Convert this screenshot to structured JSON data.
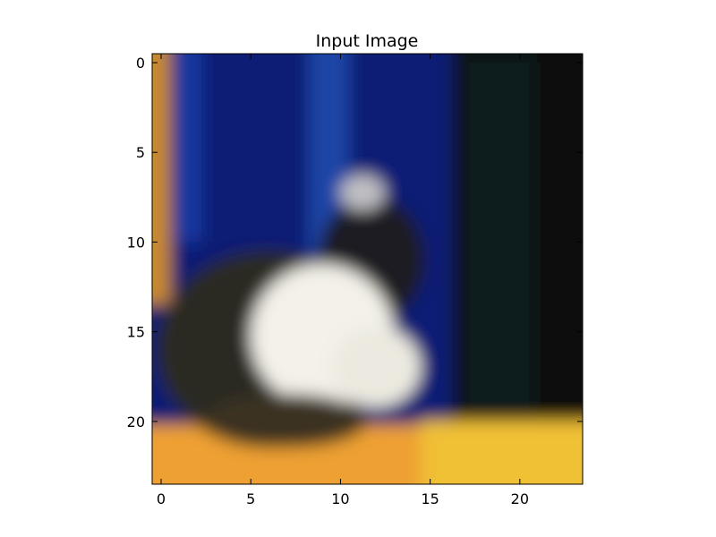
{
  "chart_data": {
    "type": "heatmap",
    "title": "Input Image",
    "xlabel": "",
    "ylabel": "",
    "xlim": [
      -0.5,
      23.5
    ],
    "ylim": [
      23.5,
      -0.5
    ],
    "x_ticks": [
      0,
      5,
      10,
      15,
      20
    ],
    "y_ticks": [
      0,
      5,
      10,
      15,
      20
    ],
    "grid": false,
    "grid_size": [
      24,
      24
    ],
    "description_regions": {
      "left_strip_color": "#c98a2a",
      "background_blue": "#0b1f78",
      "light_blue_stripe": "#1d47a8",
      "dark_right_region": "#0c1414",
      "floor_color": "#f0a830",
      "fur_white": "#f4f2ea",
      "fur_dark": "#2a2a22"
    }
  }
}
